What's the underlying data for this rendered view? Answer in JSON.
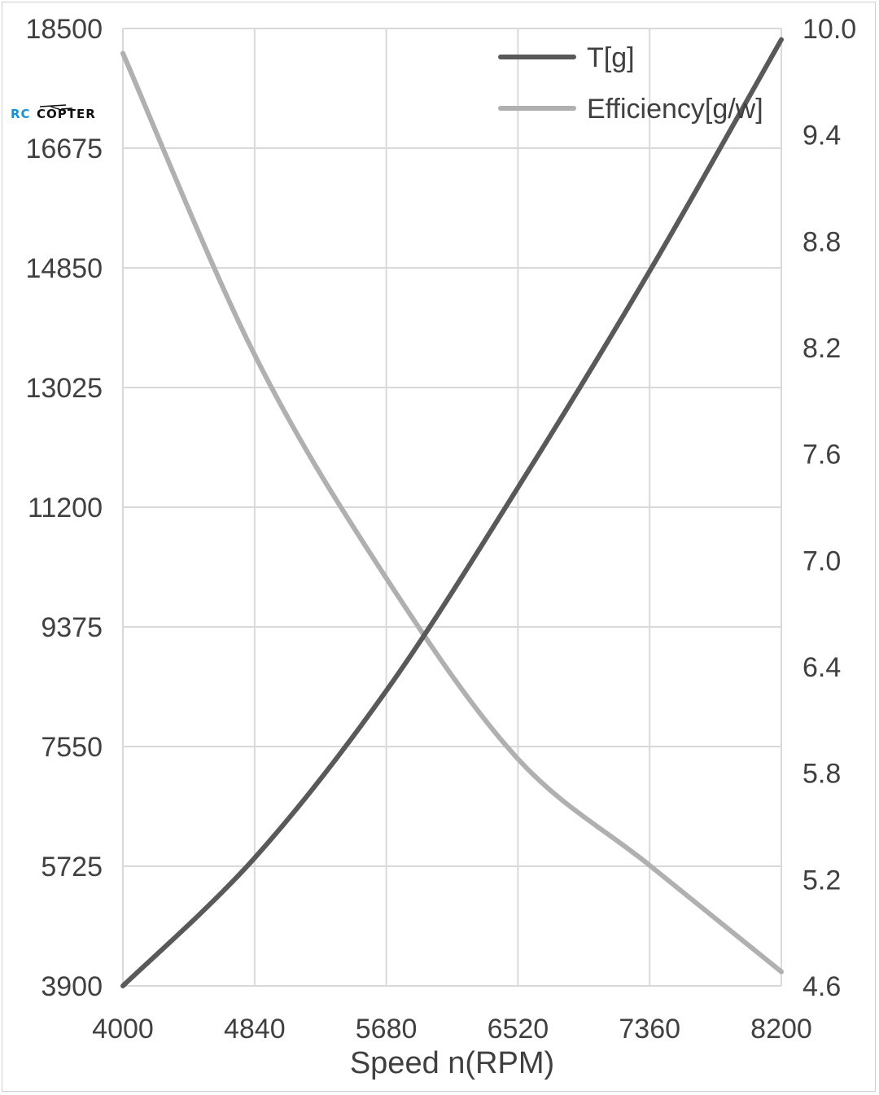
{
  "chart_data": {
    "type": "line",
    "xlabel": "Speed n(RPM)",
    "xlim": [
      4000,
      8200
    ],
    "x_ticks": [
      "4000",
      "4840",
      "5680",
      "6520",
      "7360",
      "8200"
    ],
    "ylim_left": [
      3900,
      18500
    ],
    "y_ticks_left": [
      "3900",
      "5725",
      "7550",
      "9375",
      "11200",
      "13025",
      "14850",
      "16675",
      "18500"
    ],
    "ylim_right": [
      4.6,
      10.0
    ],
    "y_ticks_right": [
      "4.6",
      "5.2",
      "5.8",
      "6.4",
      "7.0",
      "7.6",
      "8.2",
      "8.8",
      "9.4",
      "10.0"
    ],
    "grid": true,
    "legend_position": "top-right",
    "x": [
      4000,
      4840,
      5680,
      6520,
      7360,
      8200
    ],
    "series": [
      {
        "name": "T[g]",
        "axis": "left",
        "color": "#595959",
        "values": [
          3900,
          5850,
          8400,
          11500,
          14800,
          18330
        ]
      },
      {
        "name": "Efficiency[g/w]",
        "axis": "right",
        "color": "#b0b0b0",
        "values": [
          9.86,
          8.16,
          6.9,
          5.88,
          5.28,
          4.68
        ]
      }
    ]
  },
  "watermark": {
    "text_rc": "RC",
    "text_copter": "COPTER",
    "colors": {
      "rc": "#1a8fd6",
      "copter": "#111111"
    }
  }
}
